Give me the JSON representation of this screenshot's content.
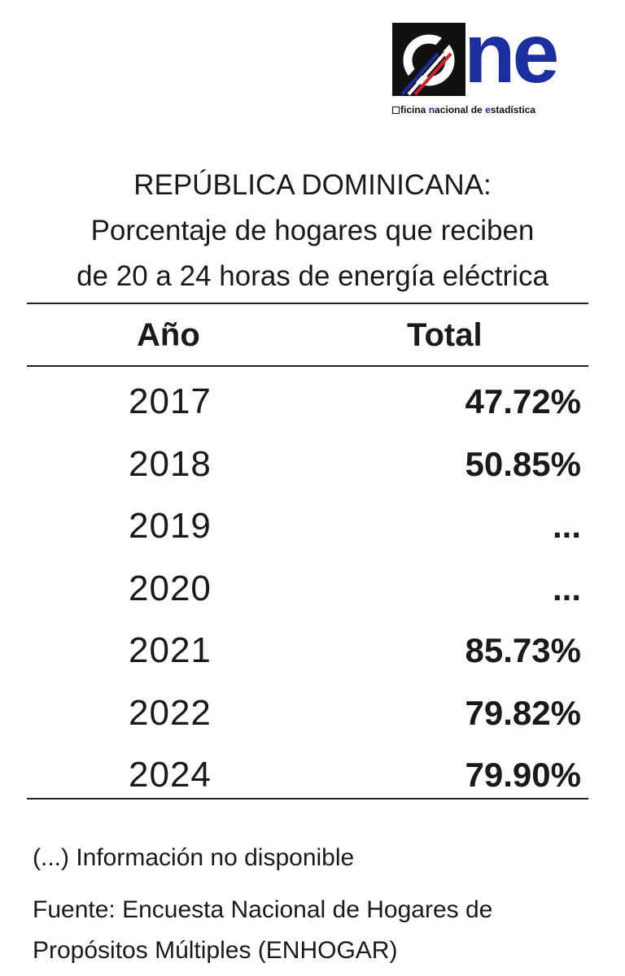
{
  "logo": {
    "word": "ne",
    "tagline_parts": [
      "ficina ",
      "n",
      "acional de ",
      "e",
      "stadística"
    ]
  },
  "title": {
    "line1": "REPÚBLICA DOMINICANA:",
    "line2": "Porcentaje de hogares que reciben",
    "line3": "de 20 a 24 horas de energía eléctrica"
  },
  "table": {
    "headers": {
      "year": "Año",
      "total": "Total"
    },
    "rows": [
      {
        "year": "2017",
        "total": "47.72%"
      },
      {
        "year": "2018",
        "total": "50.85%"
      },
      {
        "year": "2019",
        "total": "..."
      },
      {
        "year": "2020",
        "total": "..."
      },
      {
        "year": "2021",
        "total": "85.73%"
      },
      {
        "year": "2022",
        "total": "79.82%"
      },
      {
        "year": "2024",
        "total": "79.90%"
      }
    ]
  },
  "footnote": "(...) Información no disponible",
  "source": {
    "line1": "Fuente: Encuesta Nacional de Hogares de",
    "line2": "Propósitos Múltiples (ENHOGAR)"
  },
  "colors": {
    "brand_blue": "#1b2fa0",
    "brand_red": "#d02030",
    "text": "#1a1a1a"
  }
}
